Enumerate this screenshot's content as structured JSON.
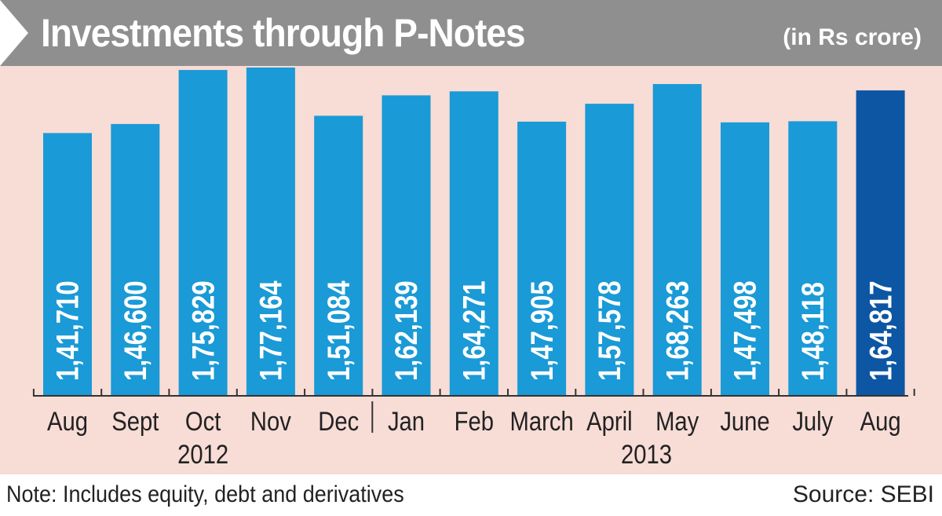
{
  "header": {
    "title": "Investments through P-Notes",
    "unit": "(in Rs crore)"
  },
  "footer": {
    "note": "Note: Includes equity, debt and derivatives",
    "source": "Source: SEBI"
  },
  "chart_data": {
    "type": "bar",
    "title": "Investments through P-Notes",
    "ylabel": "",
    "xlabel": "",
    "unit": "in Rs crore",
    "categories": [
      "Aug",
      "Sept",
      "Oct",
      "Nov",
      "Dec",
      "Jan",
      "Feb",
      "March",
      "April",
      "May",
      "June",
      "July",
      "Aug"
    ],
    "values": [
      141710,
      146600,
      175829,
      177164,
      151084,
      162139,
      164271,
      147905,
      157578,
      168263,
      147498,
      148118,
      164817
    ],
    "value_labels": [
      "1,41,710",
      "1,46,600",
      "1,75,829",
      "1,77,164",
      "1,51,084",
      "1,62,139",
      "1,64,271",
      "1,47,905",
      "1,57,578",
      "1,68,263",
      "1,47,498",
      "1,48,118",
      "1,64,817"
    ],
    "year_groups": [
      {
        "label": "2012",
        "categories": [
          "Aug",
          "Sept",
          "Oct",
          "Nov",
          "Dec"
        ]
      },
      {
        "label": "2013",
        "categories": [
          "Jan",
          "Feb",
          "March",
          "April",
          "May",
          "June",
          "July",
          "Aug"
        ]
      }
    ],
    "grid": false,
    "legend": "none",
    "colors": {
      "bar": "#1a9ad6",
      "highlight_bar": "#0d56a4",
      "background": "#f8dcd6",
      "header": "#8f8f8f"
    },
    "highlight_index": 12
  }
}
